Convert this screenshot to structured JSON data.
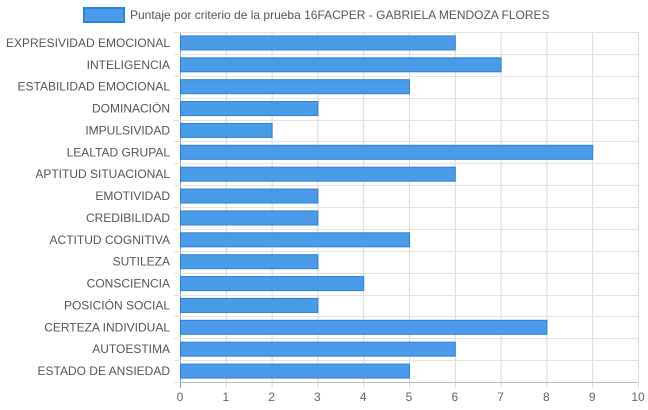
{
  "chart_data": {
    "type": "bar",
    "orientation": "horizontal",
    "categories": [
      "EXPRESIVIDAD EMOCIONAL",
      "INTELIGENCIA",
      "ESTABILIDAD EMOCIONAL",
      "DOMINACIÓN",
      "IMPULSIVIDAD",
      "LEALTAD GRUPAL",
      "APTITUD SITUACIONAL",
      "EMOTIVIDAD",
      "CREDIBILIDAD",
      "ACTITUD COGNITIVA",
      "SUTILEZA",
      "CONSCIENCIA",
      "POSICIÓN SOCIAL",
      "CERTEZA INDIVIDUAL",
      "AUTOESTIMA",
      "ESTADO DE ANSIEDAD"
    ],
    "series": [
      {
        "name": "Puntaje por criterio de la prueba 16FACPER - GABRIELA MENDOZA FLORES",
        "values": [
          6,
          7,
          5,
          3,
          2,
          9,
          6,
          3,
          3,
          5,
          3,
          4,
          3,
          8,
          6,
          5
        ],
        "color": "#4a9be8",
        "border_color": "#2f80d8"
      }
    ],
    "xlim": [
      0,
      10
    ],
    "x_ticks": [
      "0",
      "1",
      "2",
      "3",
      "4",
      "5",
      "6",
      "7",
      "8",
      "9",
      "10"
    ],
    "grid": true,
    "legend_position": "top",
    "title": "",
    "xlabel": "",
    "ylabel": ""
  }
}
